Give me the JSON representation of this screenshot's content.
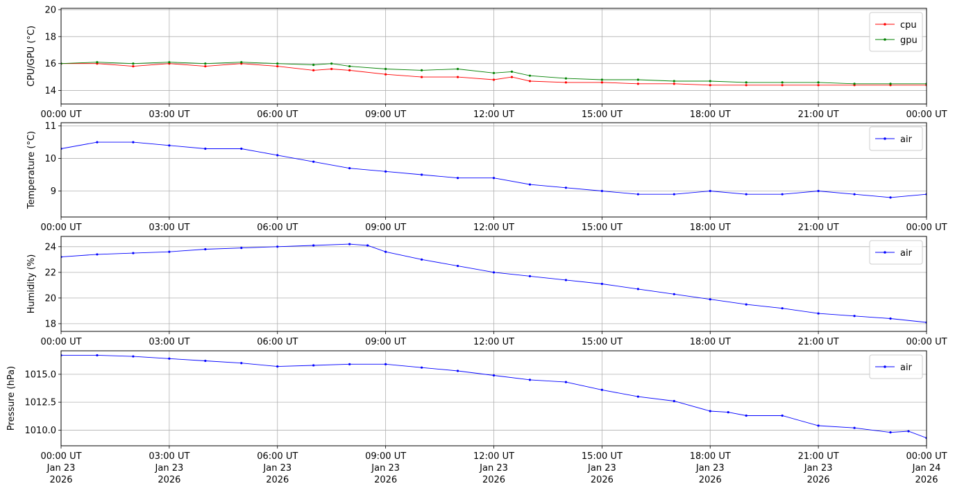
{
  "chart_data": [
    {
      "type": "line",
      "ylabel": "CPU/GPU (°C)",
      "ylim": [
        13.0,
        20.1
      ],
      "yticks": [
        14,
        16,
        18,
        20
      ],
      "xlim": [
        "2026-01-23T00:00",
        "2026-01-24T00:00"
      ],
      "xtick_labels": [
        "00:00 UT",
        "03:00 UT",
        "06:00 UT",
        "09:00 UT",
        "12:00 UT",
        "15:00 UT",
        "18:00 UT",
        "21:00 UT",
        "00:00 UT"
      ],
      "grid": true,
      "legend_position": "top-right",
      "series": [
        {
          "name": "cpu",
          "color": "#ff0000",
          "x": [
            "00:00",
            "01:00",
            "02:00",
            "03:00",
            "04:00",
            "05:00",
            "06:00",
            "07:00",
            "07:30",
            "08:00",
            "09:00",
            "10:00",
            "11:00",
            "12:00",
            "12:30",
            "13:00",
            "14:00",
            "15:00",
            "16:00",
            "17:00",
            "18:00",
            "19:00",
            "20:00",
            "21:00",
            "22:00",
            "23:00",
            "24:00"
          ],
          "y": [
            16.0,
            16.0,
            15.8,
            16.0,
            15.8,
            16.0,
            15.8,
            15.5,
            15.6,
            15.5,
            15.2,
            15.0,
            15.0,
            14.8,
            15.0,
            14.7,
            14.6,
            14.6,
            14.5,
            14.5,
            14.4,
            14.4,
            14.4,
            14.4,
            14.4,
            14.4,
            14.4
          ]
        },
        {
          "name": "gpu",
          "color": "#008000",
          "x": [
            "00:00",
            "01:00",
            "02:00",
            "03:00",
            "04:00",
            "05:00",
            "06:00",
            "07:00",
            "07:30",
            "08:00",
            "09:00",
            "10:00",
            "11:00",
            "12:00",
            "12:30",
            "13:00",
            "14:00",
            "15:00",
            "16:00",
            "17:00",
            "18:00",
            "19:00",
            "20:00",
            "21:00",
            "22:00",
            "23:00",
            "24:00"
          ],
          "y": [
            16.0,
            16.1,
            16.0,
            16.1,
            16.0,
            16.1,
            16.0,
            15.9,
            16.0,
            15.8,
            15.6,
            15.5,
            15.6,
            15.3,
            15.4,
            15.1,
            14.9,
            14.8,
            14.8,
            14.7,
            14.7,
            14.6,
            14.6,
            14.6,
            14.5,
            14.5,
            14.5
          ]
        }
      ]
    },
    {
      "type": "line",
      "ylabel": "Temperature (°C)",
      "ylim": [
        8.2,
        11.1
      ],
      "yticks": [
        9,
        10,
        11
      ],
      "xlim": [
        "2026-01-23T00:00",
        "2026-01-24T00:00"
      ],
      "xtick_labels": [
        "00:00 UT",
        "03:00 UT",
        "06:00 UT",
        "09:00 UT",
        "12:00 UT",
        "15:00 UT",
        "18:00 UT",
        "21:00 UT",
        "00:00 UT"
      ],
      "grid": true,
      "legend_position": "top-right",
      "series": [
        {
          "name": "air",
          "color": "#0000ff",
          "x": [
            "00:00",
            "01:00",
            "02:00",
            "03:00",
            "04:00",
            "05:00",
            "06:00",
            "07:00",
            "08:00",
            "09:00",
            "10:00",
            "11:00",
            "12:00",
            "13:00",
            "14:00",
            "15:00",
            "16:00",
            "17:00",
            "18:00",
            "19:00",
            "20:00",
            "21:00",
            "22:00",
            "23:00",
            "24:00"
          ],
          "y": [
            10.3,
            10.5,
            10.5,
            10.4,
            10.3,
            10.3,
            10.1,
            9.9,
            9.7,
            9.6,
            9.5,
            9.4,
            9.4,
            9.2,
            9.1,
            9.0,
            8.9,
            8.9,
            9.0,
            8.9,
            8.9,
            9.0,
            8.9,
            8.8,
            8.9
          ]
        }
      ]
    },
    {
      "type": "line",
      "ylabel": "Humidity (%)",
      "ylim": [
        17.4,
        24.8
      ],
      "yticks": [
        18,
        20,
        22,
        24
      ],
      "xlim": [
        "2026-01-23T00:00",
        "2026-01-24T00:00"
      ],
      "xtick_labels": [
        "00:00 UT",
        "03:00 UT",
        "06:00 UT",
        "09:00 UT",
        "12:00 UT",
        "15:00 UT",
        "18:00 UT",
        "21:00 UT",
        "00:00 UT"
      ],
      "grid": true,
      "legend_position": "top-right",
      "series": [
        {
          "name": "air",
          "color": "#0000ff",
          "x": [
            "00:00",
            "01:00",
            "02:00",
            "03:00",
            "04:00",
            "05:00",
            "06:00",
            "07:00",
            "08:00",
            "08:30",
            "09:00",
            "10:00",
            "11:00",
            "12:00",
            "13:00",
            "14:00",
            "15:00",
            "16:00",
            "17:00",
            "18:00",
            "19:00",
            "20:00",
            "21:00",
            "22:00",
            "23:00",
            "24:00"
          ],
          "y": [
            23.2,
            23.4,
            23.5,
            23.6,
            23.8,
            23.9,
            24.0,
            24.1,
            24.2,
            24.1,
            23.6,
            23.0,
            22.5,
            22.0,
            21.7,
            21.4,
            21.1,
            20.7,
            20.3,
            19.9,
            19.5,
            19.2,
            18.8,
            18.6,
            18.4,
            18.1
          ]
        }
      ]
    },
    {
      "type": "line",
      "ylabel": "Pressure (hPa)",
      "ylim": [
        1008.6,
        1017.1
      ],
      "yticks": [
        1010.0,
        1012.5,
        1015.0
      ],
      "ytick_labels": [
        "1010.0",
        "1012.5",
        "1015.0"
      ],
      "xlim": [
        "2026-01-23T00:00",
        "2026-01-24T00:00"
      ],
      "xtick_labels": [
        "00:00 UT\nJan 23\n2026",
        "03:00 UT\nJan 23\n2026",
        "06:00 UT\nJan 23\n2026",
        "09:00 UT\nJan 23\n2026",
        "12:00 UT\nJan 23\n2026",
        "15:00 UT\nJan 23\n2026",
        "18:00 UT\nJan 23\n2026",
        "21:00 UT\nJan 23\n2026",
        "00:00 UT\nJan 24\n2026"
      ],
      "grid": true,
      "legend_position": "top-right",
      "series": [
        {
          "name": "air",
          "color": "#0000ff",
          "x": [
            "00:00",
            "01:00",
            "02:00",
            "03:00",
            "04:00",
            "05:00",
            "06:00",
            "07:00",
            "08:00",
            "09:00",
            "10:00",
            "11:00",
            "12:00",
            "13:00",
            "14:00",
            "15:00",
            "16:00",
            "17:00",
            "18:00",
            "18:30",
            "19:00",
            "20:00",
            "21:00",
            "22:00",
            "23:00",
            "23:30",
            "24:00"
          ],
          "y": [
            1016.7,
            1016.7,
            1016.6,
            1016.4,
            1016.2,
            1016.0,
            1015.7,
            1015.8,
            1015.9,
            1015.9,
            1015.6,
            1015.3,
            1014.9,
            1014.5,
            1014.3,
            1013.6,
            1013.0,
            1012.6,
            1011.7,
            1011.6,
            1011.3,
            1011.3,
            1010.4,
            1010.2,
            1009.8,
            1009.9,
            1009.3
          ]
        }
      ]
    }
  ]
}
